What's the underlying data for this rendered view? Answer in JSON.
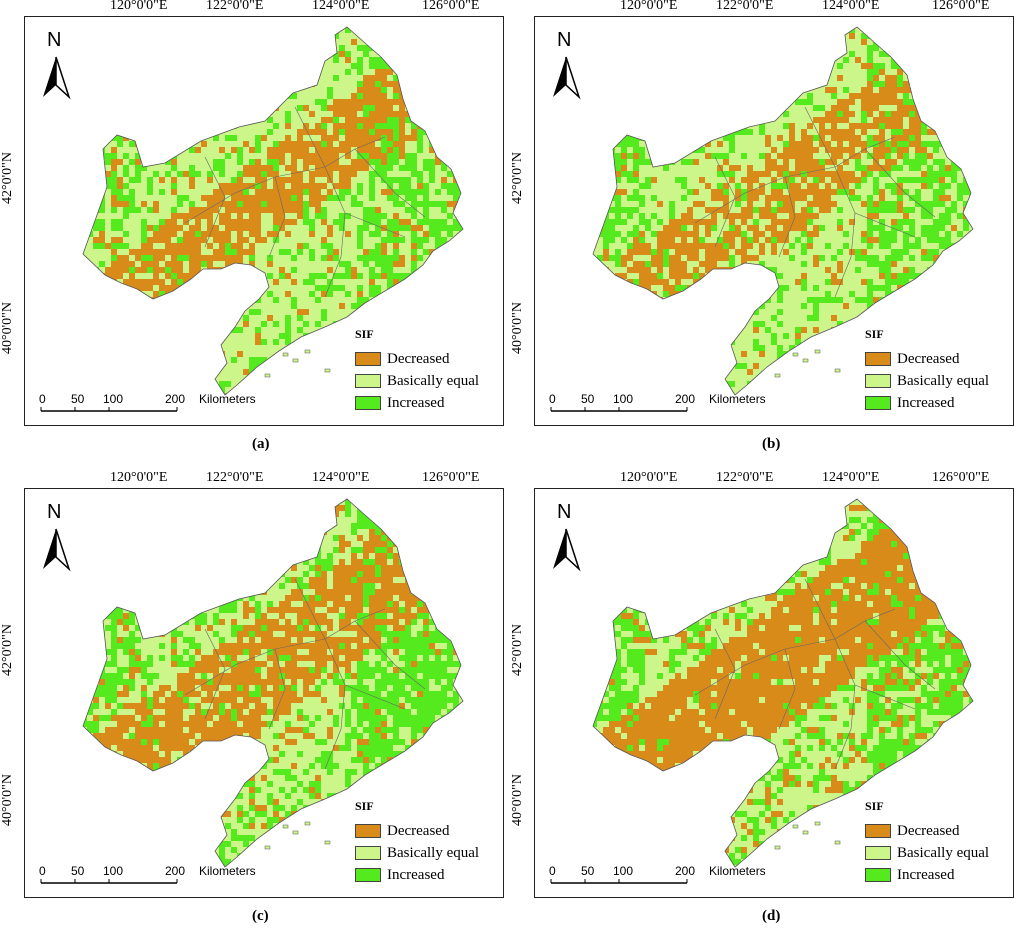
{
  "lon_labels": [
    "120°0'0\"E",
    "122°0'0\"E",
    "124°0'0\"E",
    "126°0'0\"E"
  ],
  "lat_labels": [
    "42°0'0\"N",
    "40°0'0\"N"
  ],
  "north_label": "N",
  "legend": {
    "title": "SIF",
    "items": [
      {
        "label": "Decreased",
        "color": "#d98b1a"
      },
      {
        "label": "Basically equal",
        "color": "#ccf58a"
      },
      {
        "label": "Increased",
        "color": "#55ea1e"
      }
    ]
  },
  "scale_bar": {
    "ticks": [
      "0",
      "50",
      "100",
      "200"
    ],
    "unit": "Kilometers"
  },
  "panels": [
    {
      "caption": "(a)",
      "decreased_share": 0.3,
      "increased_share": 0.3
    },
    {
      "caption": "(b)",
      "decreased_share": 0.26,
      "increased_share": 0.3
    },
    {
      "caption": "(c)",
      "decreased_share": 0.3,
      "increased_share": 0.38
    },
    {
      "caption": "(d)",
      "decreased_share": 0.36,
      "increased_share": 0.36
    }
  ]
}
